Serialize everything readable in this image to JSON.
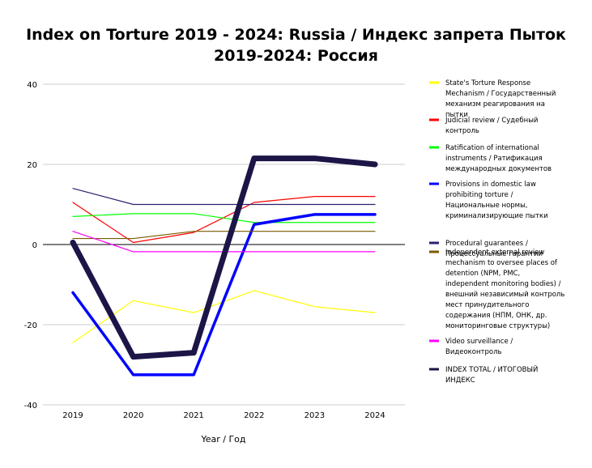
{
  "chart_data": {
    "type": "line",
    "title": "Index on Torture 2019 - 2024: Russia / Индекс запрета Пыток 2019-2024: Россия",
    "xlabel": "Year / Год",
    "ylabel": "",
    "categories": [
      "2019",
      "2020",
      "2021",
      "2022",
      "2023",
      "2024"
    ],
    "ylim": [
      -40,
      40
    ],
    "yticks": [
      40,
      20,
      0,
      -20,
      -40
    ],
    "grid": true,
    "legend_position": "right",
    "series": [
      {
        "name": "State's Torture Response Mechanism / Государственный механизм реагирования на пытки",
        "color": "#ffff00",
        "width": 1.2,
        "values": [
          -24.5,
          -14,
          -17,
          -11.5,
          -15.5,
          -17
        ]
      },
      {
        "name": "Judicial review / Судебный контроль",
        "color": "#ff0000",
        "width": 1.2,
        "values": [
          10.5,
          0.5,
          3,
          10.5,
          12,
          12
        ]
      },
      {
        "name": "Ratification of international instruments / Ратификация международных документов",
        "color": "#00ff00",
        "width": 1.2,
        "values": [
          7,
          7.7,
          7.7,
          5.5,
          5.5,
          5.5
        ]
      },
      {
        "name": "Provisions in domestic law prohibiting torture / Национальные нормы, криминализирующие пытки",
        "color": "#0000ff",
        "width": 3.5,
        "values": [
          -12,
          -32.5,
          -32.5,
          5,
          7.5,
          7.5
        ]
      },
      {
        "name": "Procedural guarantees / Процессуальные гарантии",
        "color": "#2e2070",
        "width": 1.2,
        "values": [
          14,
          10,
          10,
          10,
          10,
          10
        ]
      },
      {
        "name": "Independent external review mechanism to oversee places of detention (NPM, PMC, independent monitoring bodies) / внешний независимый контроль мест принудительного содержания (НПМ, ОНК, др. мониторинговые структуры)",
        "color": "#7a5a00",
        "width": 1.2,
        "values": [
          1.5,
          1.5,
          3.3,
          3.3,
          3.3,
          3.3
        ]
      },
      {
        "name": "Video surveillance / Видеоконтроль",
        "color": "#ff00ff",
        "width": 1.2,
        "values": [
          3.3,
          -1.8,
          -1.8,
          -1.8,
          -1.8,
          -1.8
        ]
      },
      {
        "name": "INDEX TOTAL / ИТОГОВЫЙ ИНДЕКС",
        "color": "#1c1547",
        "width": 7,
        "values": [
          0.5,
          -28,
          -27,
          21.5,
          21.5,
          20
        ]
      }
    ]
  }
}
